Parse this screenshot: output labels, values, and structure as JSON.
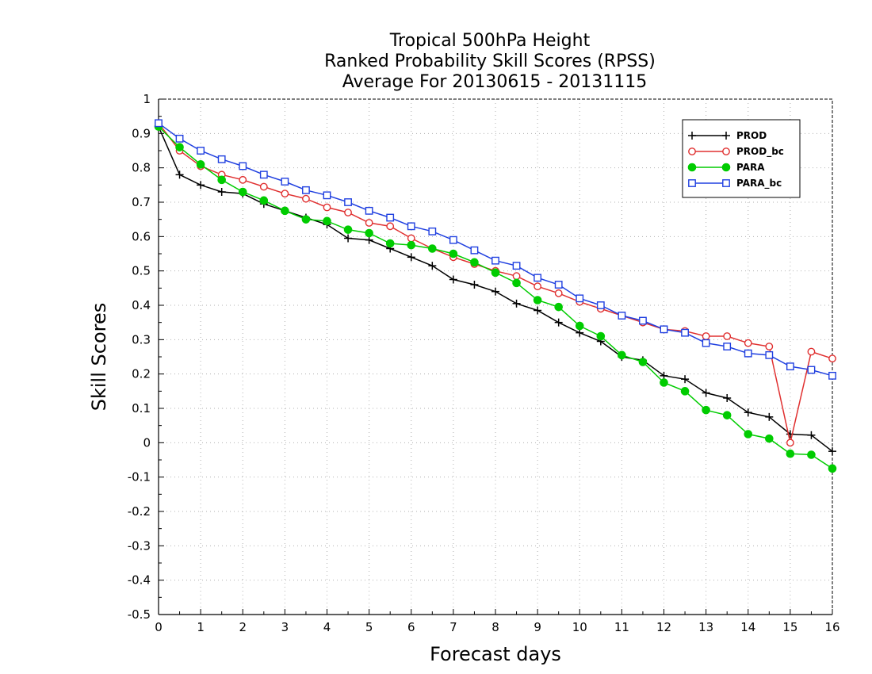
{
  "chart_data": {
    "type": "line",
    "title": [
      "Tropical 500hPa Height",
      "Ranked Probability Skill Scores (RPSS)",
      "Average For 20130615 - 20131115"
    ],
    "xlabel": "Forecast days",
    "ylabel": "Skill Scores",
    "xlim": [
      0,
      16
    ],
    "ylim": [
      -0.5,
      1
    ],
    "xticks": [
      0,
      1,
      2,
      3,
      4,
      5,
      6,
      7,
      8,
      9,
      10,
      11,
      12,
      13,
      14,
      15,
      16
    ],
    "yticks": [
      -0.5,
      -0.4,
      -0.3,
      -0.2,
      -0.1,
      0,
      0.1,
      0.2,
      0.3,
      0.4,
      0.5,
      0.6,
      0.7,
      0.8,
      0.9,
      1
    ],
    "ytick_labels": [
      "-0.5",
      "-0.4",
      "-0.3",
      "-0.2",
      "-0.1",
      "0",
      "0.1",
      "0.2",
      "0.3",
      "0.4",
      "0.5",
      "0.6",
      "0.7",
      "0.8",
      "0.9",
      "1"
    ],
    "grid": true,
    "legend": "top-right",
    "x": [
      0,
      0.5,
      1,
      1.5,
      2,
      2.5,
      3,
      3.5,
      4,
      4.5,
      5,
      5.5,
      6,
      6.5,
      7,
      7.5,
      8,
      8.5,
      9,
      9.5,
      10,
      10.5,
      11,
      11.5,
      12,
      12.5,
      13,
      13.5,
      14,
      14.5,
      15,
      15.5,
      16
    ],
    "series": [
      {
        "name": "PROD",
        "color": "#000000",
        "marker": "plus",
        "values": [
          0.92,
          0.78,
          0.75,
          0.73,
          0.725,
          0.695,
          0.675,
          0.655,
          0.635,
          0.595,
          0.59,
          0.565,
          0.54,
          0.515,
          0.475,
          0.46,
          0.44,
          0.405,
          0.385,
          0.35,
          0.32,
          0.295,
          0.25,
          0.24,
          0.195,
          0.185,
          0.145,
          0.13,
          0.088,
          0.075,
          0.025,
          0.022,
          -0.025
        ]
      },
      {
        "name": "PROD_bc",
        "color": "#e03030",
        "marker": "circle-open",
        "values": [
          0.93,
          0.85,
          0.805,
          0.78,
          0.765,
          0.745,
          0.725,
          0.71,
          0.685,
          0.67,
          0.64,
          0.63,
          0.595,
          0.565,
          0.54,
          0.52,
          0.5,
          0.485,
          0.455,
          0.435,
          0.41,
          0.39,
          0.37,
          0.35,
          0.33,
          0.325,
          0.31,
          0.31,
          0.29,
          0.28,
          0.0,
          0.265,
          0.245
        ]
      },
      {
        "name": "PARA",
        "color": "#00cc00",
        "marker": "circle-filled",
        "values": [
          0.92,
          0.86,
          0.81,
          0.765,
          0.73,
          0.705,
          0.675,
          0.65,
          0.645,
          0.62,
          0.61,
          0.58,
          0.575,
          0.565,
          0.55,
          0.525,
          0.495,
          0.465,
          0.415,
          0.395,
          0.34,
          0.31,
          0.255,
          0.235,
          0.175,
          0.15,
          0.095,
          0.08,
          0.025,
          0.012,
          -0.032,
          -0.035,
          -0.075
        ]
      },
      {
        "name": "PARA_bc",
        "color": "#2040e0",
        "marker": "square-open",
        "values": [
          0.93,
          0.885,
          0.85,
          0.825,
          0.805,
          0.78,
          0.76,
          0.735,
          0.72,
          0.7,
          0.675,
          0.655,
          0.63,
          0.615,
          0.59,
          0.56,
          0.53,
          0.515,
          0.48,
          0.46,
          0.42,
          0.4,
          0.37,
          0.355,
          0.33,
          0.32,
          0.29,
          0.28,
          0.26,
          0.255,
          0.222,
          0.212,
          0.195
        ]
      }
    ]
  }
}
